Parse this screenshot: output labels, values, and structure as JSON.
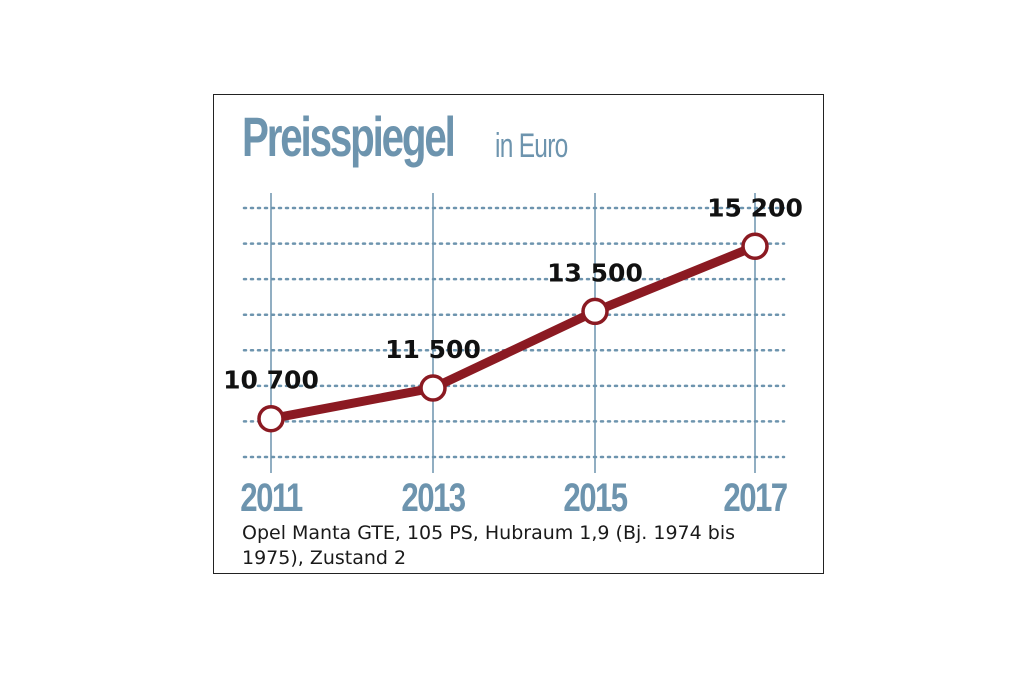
{
  "chart_data": {
    "type": "line",
    "title": "Preisspiegel",
    "subtitle": "in Euro",
    "caption": "Opel Manta GTE, 105 PS, Hubraum 1,9 (Bj. 1974 bis 1975), Zustand 2",
    "categories": [
      "2011",
      "2013",
      "2015",
      "2017"
    ],
    "series": [
      {
        "values": [
          10700,
          11500,
          13500,
          15200
        ],
        "labels": [
          "10 700",
          "11 500",
          "13 500",
          "15 200"
        ]
      }
    ],
    "ylim": [
      9700,
      16200
    ],
    "grid": true,
    "colors": {
      "line": "#8b1a22",
      "marker_fill": "#ffffff",
      "grid": "#6d94ae",
      "title": "#6d94ae",
      "year_labels": "#6d94ae",
      "value_labels": "#111111"
    }
  }
}
